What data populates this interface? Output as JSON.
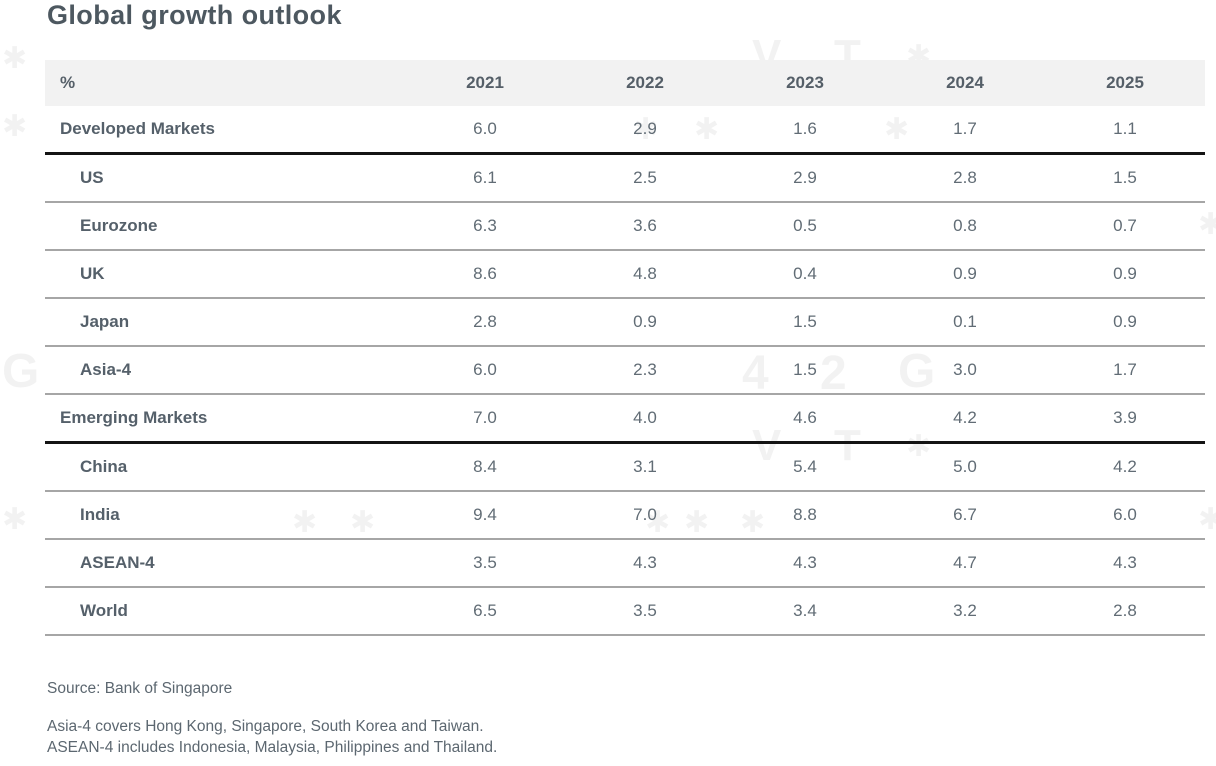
{
  "chart_data": {
    "type": "table",
    "title": "Global growth outlook",
    "unit_label": "%",
    "columns": [
      "2021",
      "2022",
      "2023",
      "2024",
      "2025"
    ],
    "rows": [
      {
        "label": "Developed Markets",
        "indent": false,
        "divider_below": "thick",
        "values": [
          "6.0",
          "2.9",
          "1.6",
          "1.7",
          "1.1"
        ]
      },
      {
        "label": "US",
        "indent": true,
        "divider_below": "thin",
        "values": [
          "6.1",
          "2.5",
          "2.9",
          "2.8",
          "1.5"
        ]
      },
      {
        "label": "Eurozone",
        "indent": true,
        "divider_below": "thin",
        "values": [
          "6.3",
          "3.6",
          "0.5",
          "0.8",
          "0.7"
        ]
      },
      {
        "label": "UK",
        "indent": true,
        "divider_below": "thin",
        "values": [
          "8.6",
          "4.8",
          "0.4",
          "0.9",
          "0.9"
        ]
      },
      {
        "label": "Japan",
        "indent": true,
        "divider_below": "thin",
        "values": [
          "2.8",
          "0.9",
          "1.5",
          "0.1",
          "0.9"
        ]
      },
      {
        "label": "Asia-4",
        "indent": true,
        "divider_below": "thin",
        "values": [
          "6.0",
          "2.3",
          "1.5",
          "3.0",
          "1.7"
        ]
      },
      {
        "label": "Emerging Markets",
        "indent": false,
        "divider_below": "thick",
        "values": [
          "7.0",
          "4.0",
          "4.6",
          "4.2",
          "3.9"
        ]
      },
      {
        "label": "China",
        "indent": true,
        "divider_below": "thin",
        "values": [
          "8.4",
          "3.1",
          "5.4",
          "5.0",
          "4.2"
        ]
      },
      {
        "label": "India",
        "indent": true,
        "divider_below": "thin",
        "values": [
          "9.4",
          "7.0",
          "8.8",
          "6.7",
          "6.0"
        ]
      },
      {
        "label": "ASEAN-4",
        "indent": true,
        "divider_below": "thin",
        "values": [
          "3.5",
          "4.3",
          "4.3",
          "4.7",
          "4.3"
        ]
      },
      {
        "label": "World",
        "indent": true,
        "divider_below": "thin",
        "values": [
          "6.5",
          "3.5",
          "3.4",
          "3.2",
          "2.8"
        ]
      }
    ],
    "source": "Source: Bank of Singapore",
    "footnotes": [
      "Asia-4 covers Hong Kong, Singapore, South Korea and Taiwan.",
      "ASEAN-4 includes Indonesia, Malaysia, Philippines and Thailand."
    ],
    "layout_hints": {
      "header_band": true,
      "section_dividers": "thick-black-below-group-rows",
      "row_dividers": "thin-gray"
    }
  },
  "colors": {
    "title_text": "#4d5860",
    "body_text": "#5e6a72",
    "header_band_bg": "#f2f2f2",
    "thin_divider": "#a6a6a6",
    "thick_divider": "#141414"
  },
  "watermark": {
    "glyphs": [
      "✱",
      "V",
      "T",
      "G",
      "4",
      "2"
    ]
  }
}
